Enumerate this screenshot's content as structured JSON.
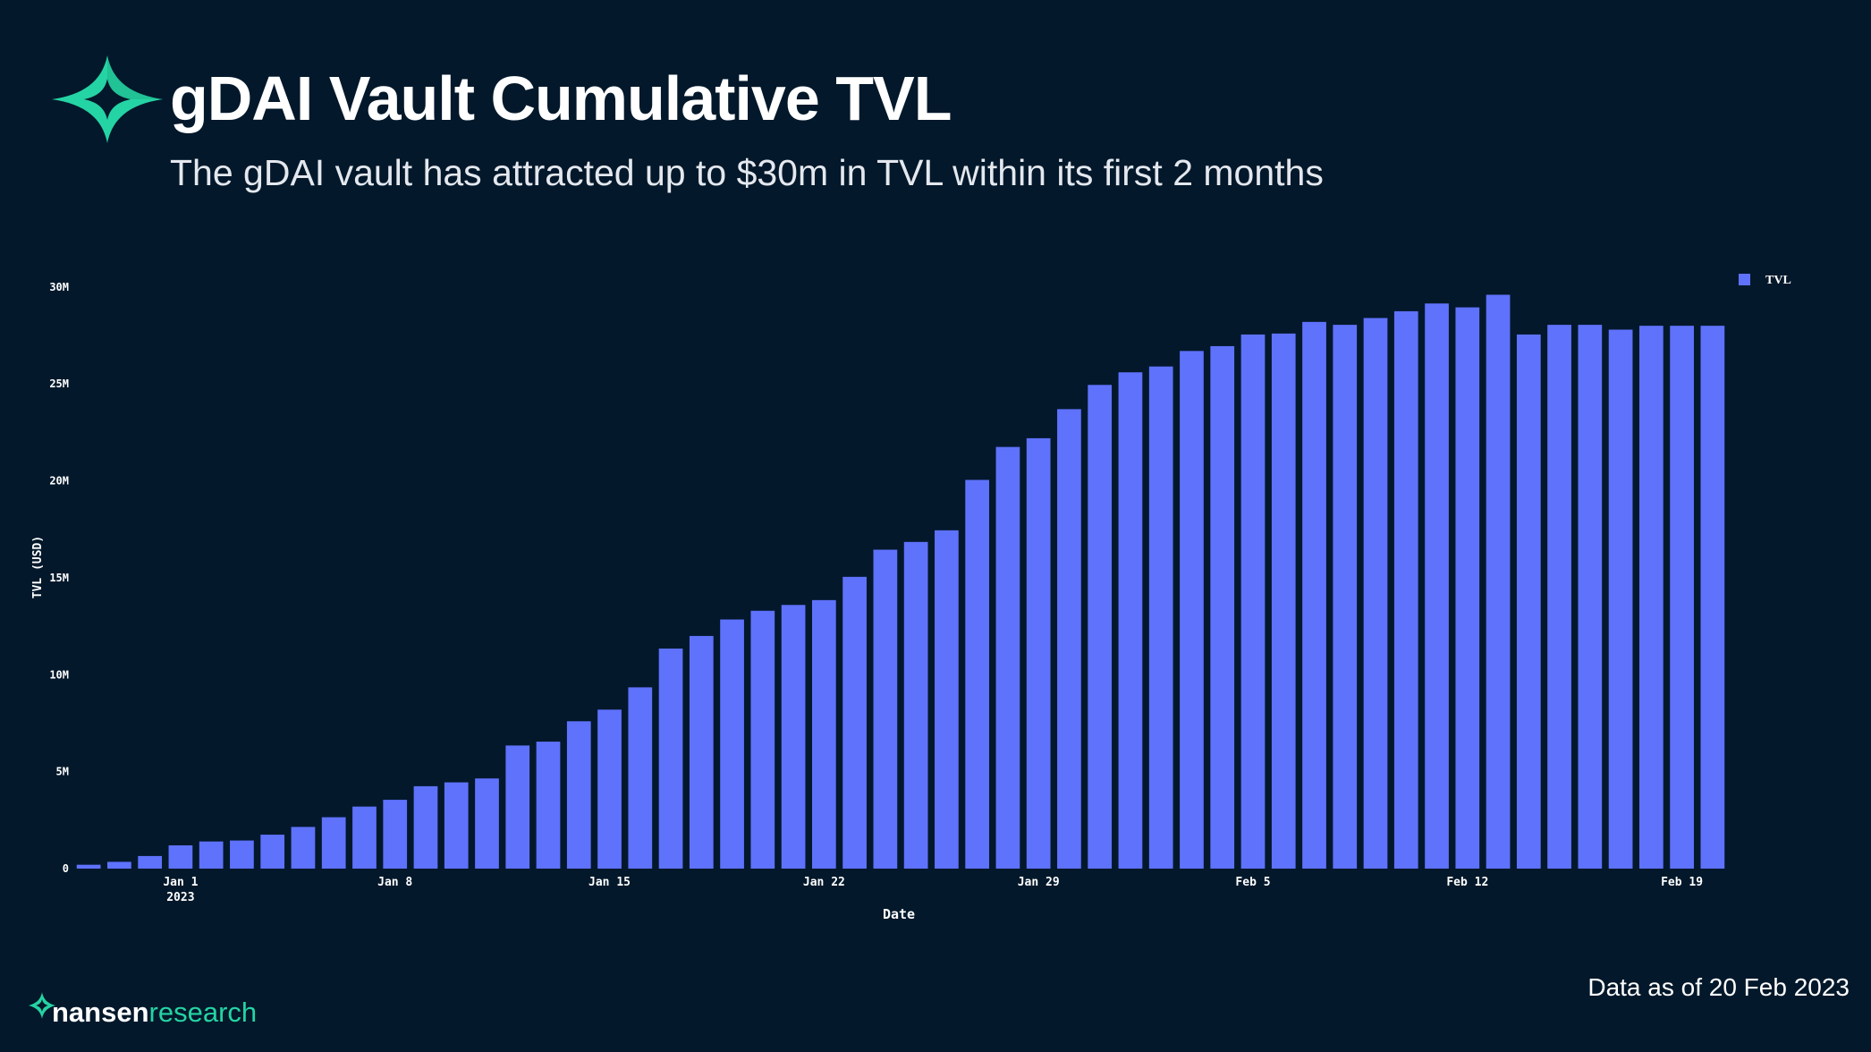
{
  "header": {
    "title": "gDAI Vault Cumulative TVL",
    "subtitle": "The gDAI vault has attracted up to $30m in TVL within its first 2 months",
    "logo_icon": "nansen-star-icon"
  },
  "footer": {
    "data_note": "Data as of 20 Feb 2023",
    "brand_part1": "nansen",
    "brand_part2": "research"
  },
  "colors": {
    "background": "#03182b",
    "bar": "#5f72fc",
    "accent": "#25d4a4",
    "text": "#ffffff"
  },
  "chart_data": {
    "type": "bar",
    "title": "gDAI Vault Cumulative TVL",
    "xlabel": "Date",
    "ylabel": "TVL (USD)",
    "ylim": [
      0,
      30500000
    ],
    "legend": {
      "position": "top-right",
      "entries": [
        "TVL"
      ]
    },
    "y_ticks": [
      {
        "value": 0,
        "label": "0"
      },
      {
        "value": 5000000,
        "label": "5M"
      },
      {
        "value": 10000000,
        "label": "10M"
      },
      {
        "value": 15000000,
        "label": "15M"
      },
      {
        "value": 20000000,
        "label": "20M"
      },
      {
        "value": 25000000,
        "label": "25M"
      },
      {
        "value": 30000000,
        "label": "30M"
      }
    ],
    "x_ticks": [
      {
        "index": 3,
        "label": "Jan 1",
        "sublabel": "2023"
      },
      {
        "index": 10,
        "label": "Jan 8"
      },
      {
        "index": 17,
        "label": "Jan 15"
      },
      {
        "index": 24,
        "label": "Jan 22"
      },
      {
        "index": 31,
        "label": "Jan 29"
      },
      {
        "index": 38,
        "label": "Feb 5"
      },
      {
        "index": 45,
        "label": "Feb 12"
      },
      {
        "index": 52,
        "label": "Feb 19"
      }
    ],
    "series": [
      {
        "name": "TVL",
        "categories": [
          "Dec 29",
          "Dec 30",
          "Dec 31",
          "Jan 1",
          "Jan 2",
          "Jan 3",
          "Jan 4",
          "Jan 5",
          "Jan 6",
          "Jan 7",
          "Jan 8",
          "Jan 9",
          "Jan 10",
          "Jan 11",
          "Jan 12",
          "Jan 13",
          "Jan 14",
          "Jan 15",
          "Jan 16",
          "Jan 17",
          "Jan 18",
          "Jan 19",
          "Jan 20",
          "Jan 21",
          "Jan 22",
          "Jan 23",
          "Jan 24",
          "Jan 25",
          "Jan 26",
          "Jan 27",
          "Jan 28",
          "Jan 29",
          "Jan 30",
          "Jan 31",
          "Feb 1",
          "Feb 2",
          "Feb 3",
          "Feb 4",
          "Feb 5",
          "Feb 6",
          "Feb 7",
          "Feb 8",
          "Feb 9",
          "Feb 10",
          "Feb 11",
          "Feb 12",
          "Feb 13",
          "Feb 14",
          "Feb 15",
          "Feb 16",
          "Feb 17",
          "Feb 18",
          "Feb 19",
          "Feb 20"
        ],
        "values": [
          200000,
          350000,
          650000,
          1200000,
          1400000,
          1450000,
          1750000,
          2150000,
          2650000,
          3200000,
          3550000,
          4250000,
          4450000,
          4650000,
          6350000,
          6550000,
          7600000,
          8200000,
          9350000,
          11350000,
          12000000,
          12850000,
          13300000,
          13600000,
          13850000,
          15050000,
          16450000,
          16850000,
          17450000,
          20050000,
          21750000,
          22200000,
          23700000,
          24950000,
          25600000,
          25900000,
          26700000,
          26950000,
          27550000,
          27600000,
          28200000,
          28050000,
          28400000,
          28750000,
          29150000,
          28950000,
          29600000,
          27550000,
          28050000,
          28050000,
          27800000,
          28000000,
          28000000,
          28000000
        ]
      }
    ]
  }
}
